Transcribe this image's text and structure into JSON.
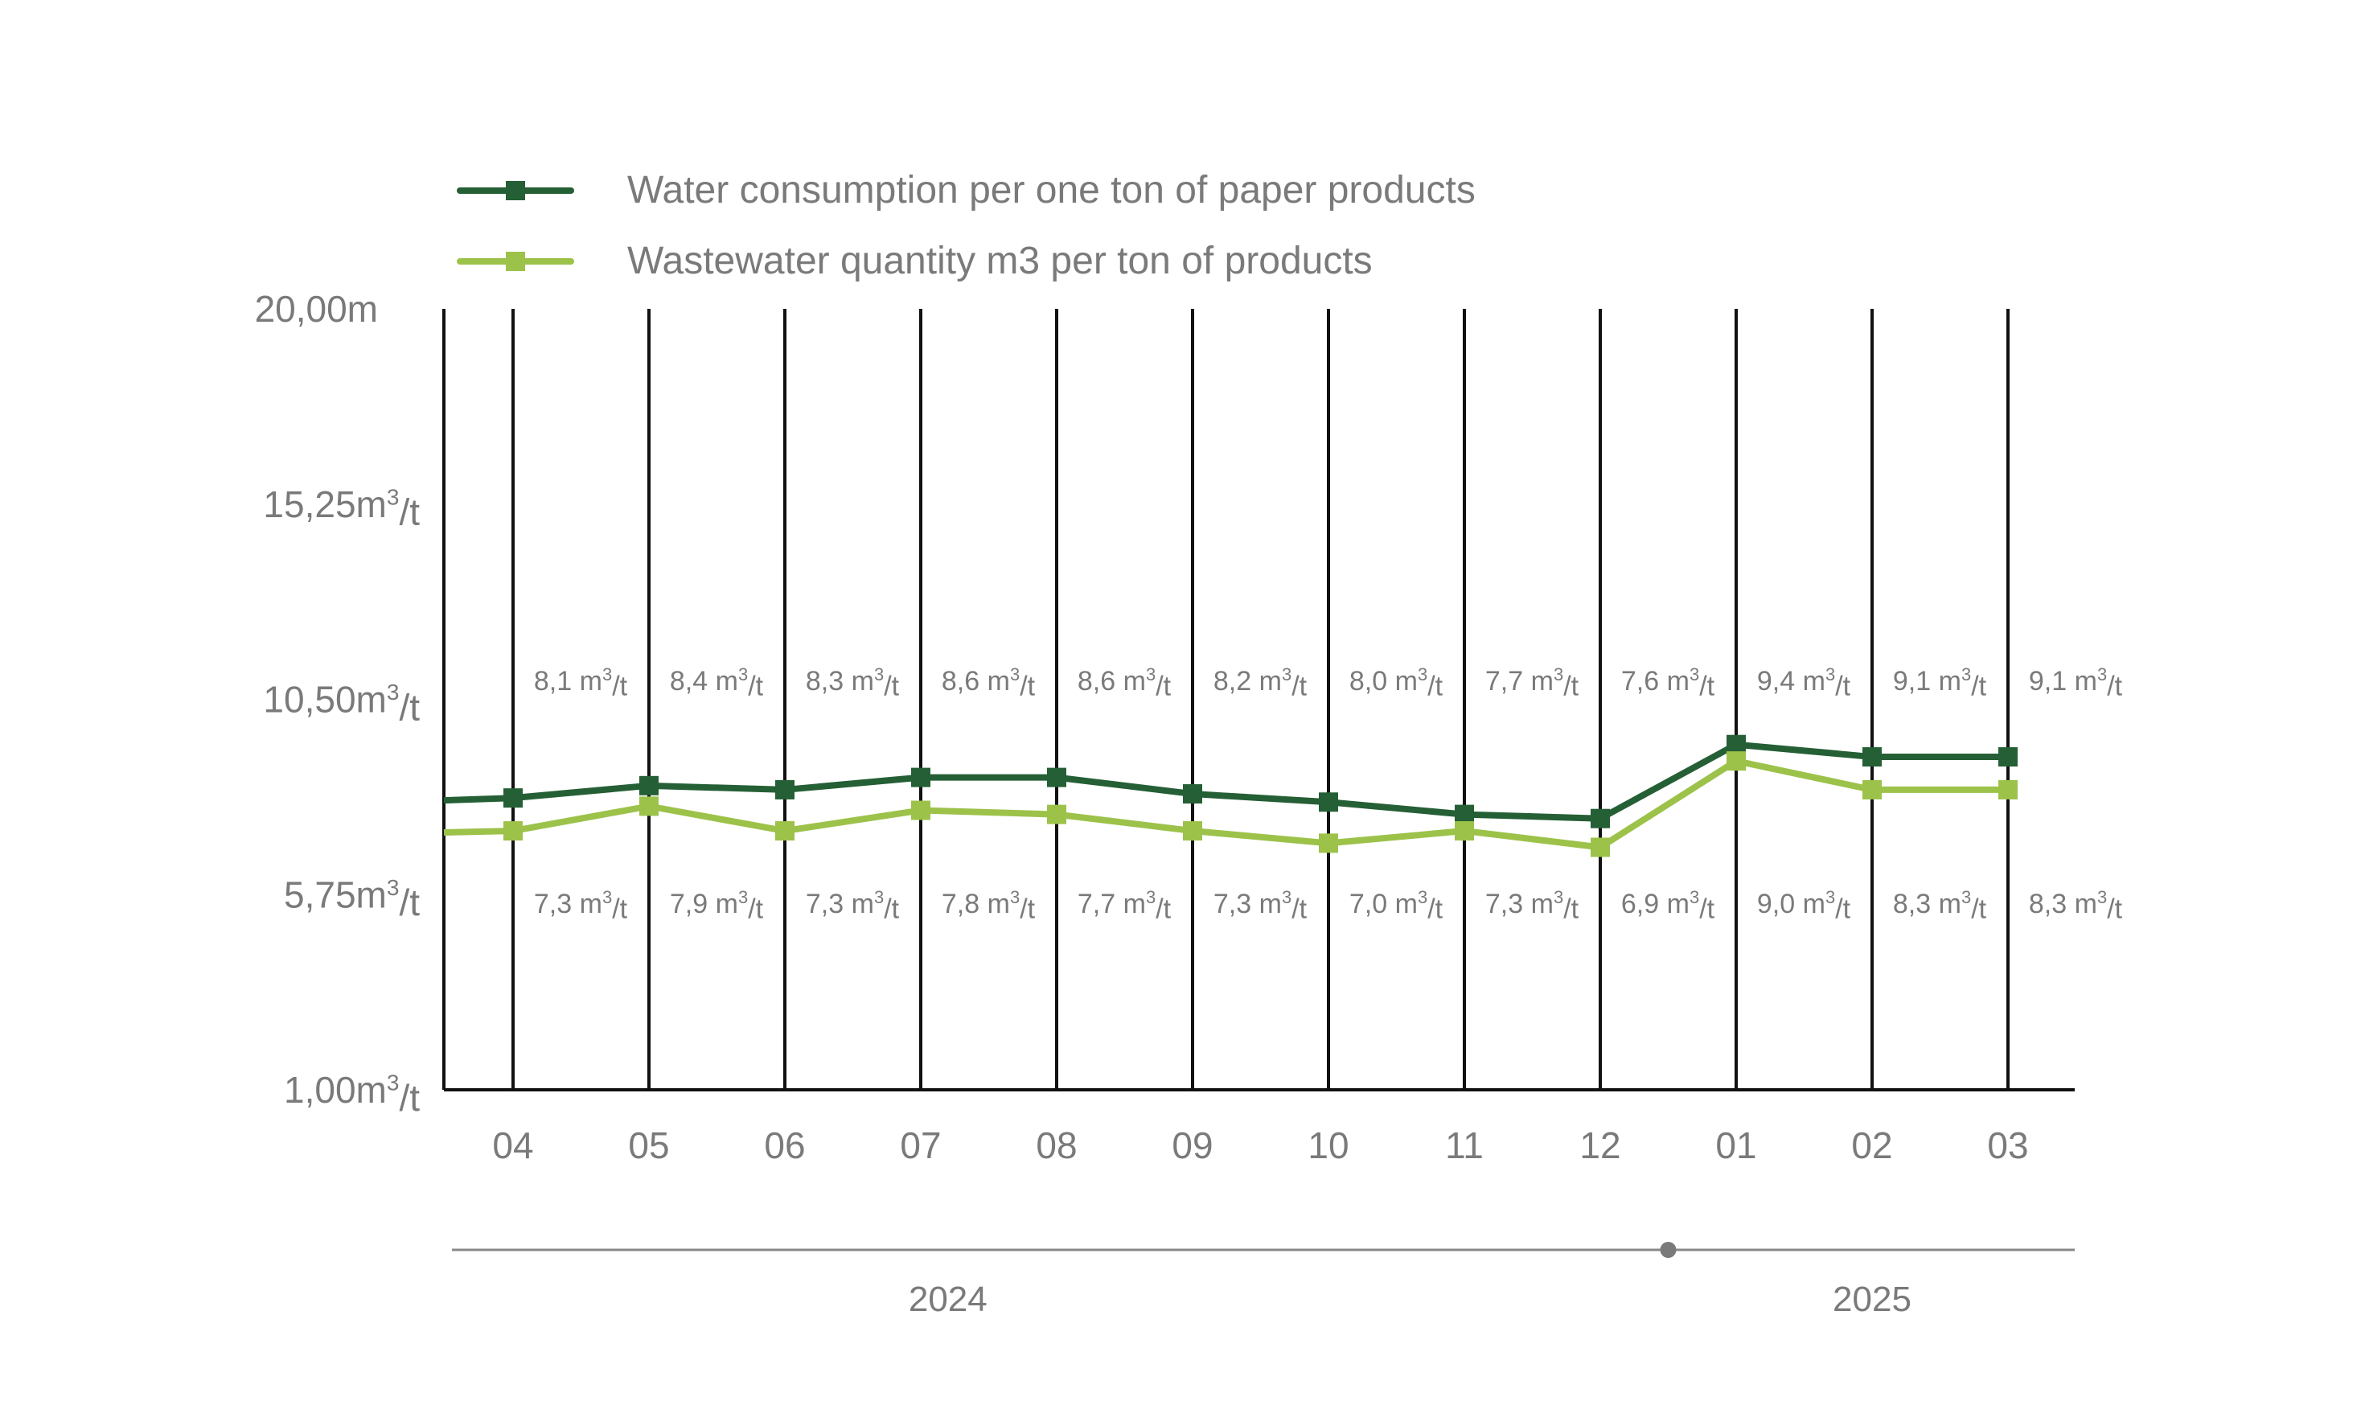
{
  "chart_data": {
    "type": "line",
    "categories": [
      "04",
      "05",
      "06",
      "07",
      "08",
      "09",
      "10",
      "11",
      "12",
      "01",
      "02",
      "03"
    ],
    "series": [
      {
        "name": "Water consumption per one ton of paper products",
        "color": "#255f35",
        "values": [
          8.1,
          8.4,
          8.3,
          8.6,
          8.6,
          8.2,
          8.0,
          7.7,
          7.6,
          9.4,
          9.1,
          9.1
        ],
        "labels": [
          "8,1 m³/t",
          "8,4 m³/t",
          "8,3 m³/t",
          "8,6 m³/t",
          "8,6 m³/t",
          "8,2 m³/t",
          "8,0 m³/t",
          "7,7 m³/t",
          "7,6 m³/t",
          "9,4 m³/t",
          "9,1 m³/t",
          "9,1 m³/t"
        ]
      },
      {
        "name": "Wastewater quantity m3 per ton of products",
        "color": "#9cc24a",
        "values": [
          7.3,
          7.9,
          7.3,
          7.8,
          7.7,
          7.3,
          7.0,
          7.3,
          6.9,
          9.0,
          8.3,
          8.3
        ],
        "labels": [
          "7,3 m³/t",
          "7,9 m³/t",
          "7,3 m³/t",
          "7,8 m³/t",
          "7,7 m³/t",
          "7,3 m³/t",
          "7,0 m³/t",
          "7,3 m³/t",
          "6,9 m³/t",
          "9,0 m³/t",
          "8,3 m³/t",
          "8,3 m³/t"
        ]
      }
    ],
    "y_ticks": [
      {
        "value": 20.0,
        "label": "20,00m"
      },
      {
        "value": 15.25,
        "label": "15,25m³/t"
      },
      {
        "value": 10.5,
        "label": "10,50m³/t"
      },
      {
        "value": 5.75,
        "label": "5,75m³/t"
      },
      {
        "value": 1.0,
        "label": "1,00m³/t"
      }
    ],
    "ylim": [
      1.0,
      20.0
    ],
    "years": [
      {
        "label": "2024",
        "spans": [
          "04",
          "12"
        ]
      },
      {
        "label": "2025",
        "spans": [
          "01",
          "03"
        ]
      }
    ],
    "grid": "vertical",
    "legend": "top-left"
  }
}
